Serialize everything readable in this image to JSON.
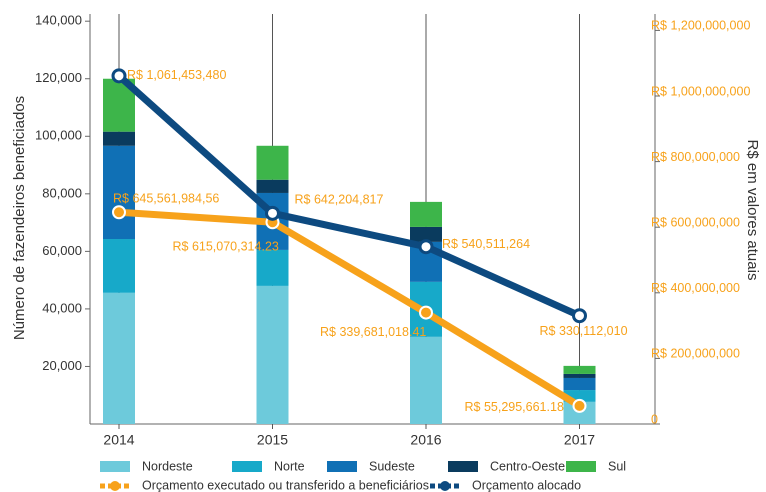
{
  "chart_data": {
    "type": "bar",
    "stacked": true,
    "categories": [
      "2014",
      "2015",
      "2016",
      "2017"
    ],
    "ylabel": "Número de fazendeiros beneficiados",
    "y2label": "R$ em valores atuais",
    "ylim": [
      0,
      142500
    ],
    "yticks": [
      {
        "value": 20000,
        "label": "20,000"
      },
      {
        "value": 40000,
        "label": "40,000"
      },
      {
        "value": 60000,
        "label": "60,000"
      },
      {
        "value": 80000,
        "label": "80,000"
      },
      {
        "value": 100000,
        "label": "100,000"
      },
      {
        "value": 120000,
        "label": "120,000"
      },
      {
        "value": 140000,
        "label": "140,000"
      }
    ],
    "y2lim": [
      0,
      1250000000
    ],
    "y2ticks": [
      0,
      {
        "value": 200000000,
        "label": "R$ 200,000,000"
      },
      {
        "value": 400000000,
        "label": "R$ 400,000,000"
      },
      {
        "value": 600000000,
        "label": "R$ 600,000,000"
      },
      {
        "value": 800000000,
        "label": "R$ 800,000,000"
      },
      {
        "value": 1000000000,
        "label": "R$ 1,000,000,000"
      },
      {
        "value": 1200000000,
        "label": "R$ 1,200,000,000"
      }
    ],
    "series": [
      {
        "name": "Nordeste",
        "color": "#6dcadb",
        "values": [
          45600,
          48000,
          30300,
          7700
        ]
      },
      {
        "name": "Norte",
        "color": "#17a9c9",
        "values": [
          18700,
          12500,
          19100,
          4100
        ]
      },
      {
        "name": "Sudeste",
        "color": "#1070b5",
        "values": [
          32400,
          19800,
          13900,
          4200
        ]
      },
      {
        "name": "Centro-Oeste",
        "color": "#0a3b5e",
        "values": [
          4900,
          4600,
          5200,
          1400
        ]
      },
      {
        "name": "Sul",
        "color": "#3db54a",
        "values": [
          18400,
          11800,
          8700,
          2800
        ]
      },
      {
        "name": "Orçamento executado ou transferido a beneficiários",
        "type": "line",
        "axis": "y2",
        "color": "#f7a21b",
        "values": [
          645561984.56,
          615070314.23,
          339681018.41,
          55295661.18
        ],
        "value_labels": [
          "R$ 645,561,984,56",
          "R$ 615,070,314.23",
          "R$ 339,681,018.41",
          "R$ 55,295,661.18"
        ]
      },
      {
        "name": "Orçamento alocado",
        "type": "line",
        "axis": "y2",
        "color": "#0d4a80",
        "values": [
          1061453480,
          642204817,
          540511264,
          330112010
        ],
        "value_labels": [
          "R$ 1,061,453,480",
          "R$ 642,204,817",
          "R$ 540,511,264",
          "R$ 330,112,010"
        ]
      }
    ]
  }
}
